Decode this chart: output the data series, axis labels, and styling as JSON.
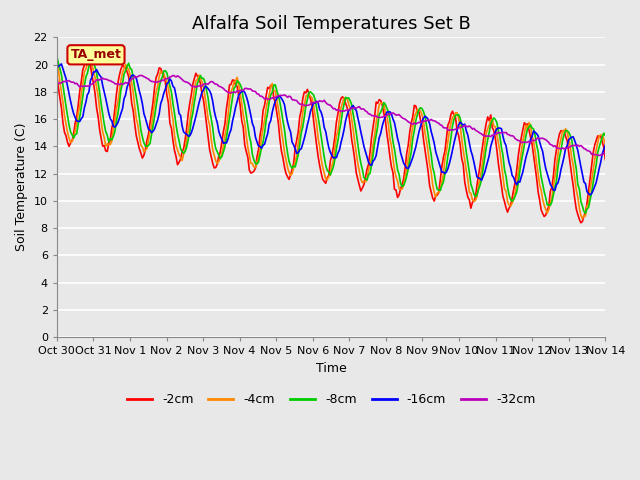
{
  "title": "Alfalfa Soil Temperatures Set B",
  "xlabel": "Time",
  "ylabel": "Soil Temperature (C)",
  "ylim": [
    0,
    22
  ],
  "yticks": [
    0,
    2,
    4,
    6,
    8,
    10,
    12,
    14,
    16,
    18,
    20,
    22
  ],
  "xtick_labels": [
    "Oct 30",
    "Oct 31",
    "Nov 1",
    "Nov 2",
    "Nov 3",
    "Nov 4",
    "Nov 5",
    "Nov 6",
    "Nov 7",
    "Nov 8",
    "Nov 9",
    "Nov 10",
    "Nov 11",
    "Nov 12",
    "Nov 13",
    "Nov 14"
  ],
  "series_colors": [
    "#ff0000",
    "#ff8800",
    "#00cc00",
    "#0000ff",
    "#bb00bb"
  ],
  "series_labels": [
    "-2cm",
    "-4cm",
    "-8cm",
    "-16cm",
    "-32cm"
  ],
  "line_width": 1.2,
  "plot_bg_color": "#e8e8e8",
  "fig_bg_color": "#e8e8e8",
  "annotation_text": "TA_met",
  "annotation_color": "#990000",
  "annotation_bg": "#ffff99",
  "annotation_edge": "#cc0000",
  "title_fontsize": 13,
  "label_fontsize": 9,
  "tick_fontsize": 8,
  "legend_fontsize": 9,
  "grid_color": "#ffffff",
  "grid_lw": 1.2
}
